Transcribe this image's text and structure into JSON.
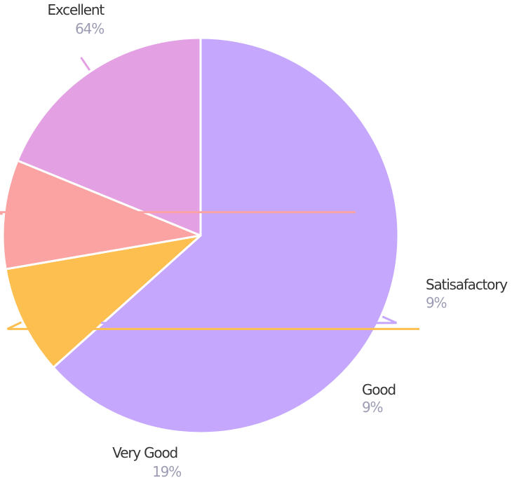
{
  "chart_data": {
    "type": "pie",
    "title": "",
    "start_angle_deg": 90,
    "direction": "clockwise",
    "slices": [
      {
        "label": "Excellent",
        "value": 64,
        "percent_label": "64%",
        "color": "#c5a8fd"
      },
      {
        "label": "Satisafactory",
        "value": 9,
        "percent_label": "9%",
        "color": "#fdbf50"
      },
      {
        "label": "Good",
        "value": 9,
        "percent_label": "9%",
        "color": "#fba3a3"
      },
      {
        "label": "Very Good",
        "value": 19,
        "percent_label": "19%",
        "color": "#e3a1e3"
      }
    ],
    "legend": "none"
  }
}
